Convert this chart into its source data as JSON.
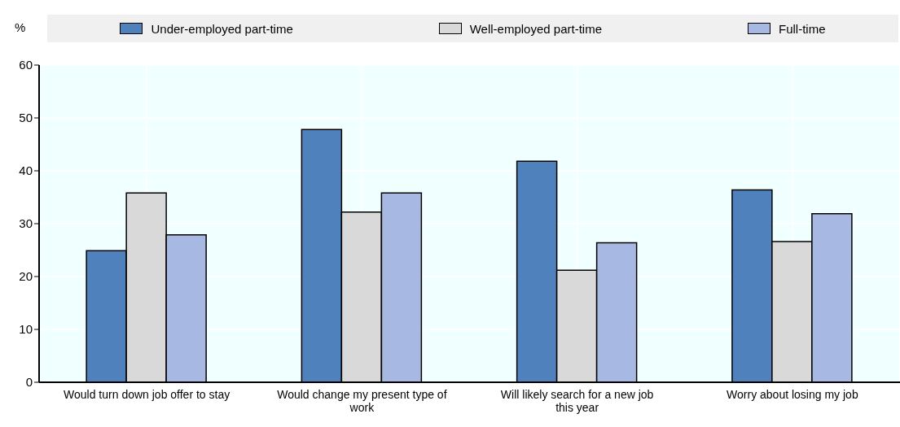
{
  "chart_data": {
    "type": "bar",
    "ylabel": "%",
    "categories": [
      "Would turn down job offer to stay",
      "Would change my present type of work",
      "Will likely search for a new job this year",
      "Worry about losing my job"
    ],
    "series": [
      {
        "name": "Under-employed part-time",
        "color": "#4f81bd",
        "values": [
          24.9,
          47.8,
          41.8,
          36.4
        ]
      },
      {
        "name": "Well-employed part-time",
        "color": "#d9d9d9",
        "values": [
          35.8,
          32.2,
          21.2,
          26.6
        ]
      },
      {
        "name": "Full-time",
        "color": "#a7b8e2",
        "values": [
          27.9,
          35.8,
          26.4,
          31.9
        ]
      }
    ],
    "ylim": [
      0,
      60
    ],
    "yticks": [
      0,
      10,
      20,
      30,
      40,
      50,
      60
    ],
    "grid": true,
    "legend": "top"
  }
}
